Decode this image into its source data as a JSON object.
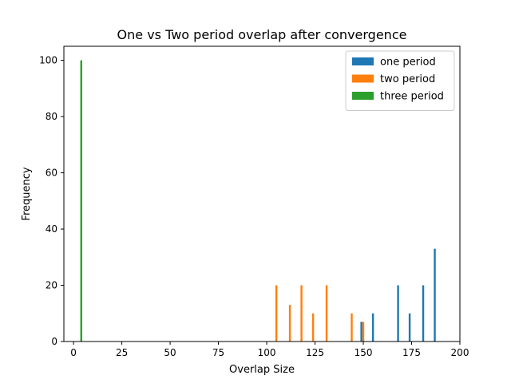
{
  "chart_data": {
    "type": "bar",
    "title": "One vs Two period overlap after convergence",
    "xlabel": "Overlap Size",
    "ylabel": "Frequency",
    "xlim": [
      -5,
      200
    ],
    "ylim": [
      0,
      105
    ],
    "xticks": [
      0,
      25,
      50,
      75,
      100,
      125,
      150,
      175,
      200
    ],
    "yticks": [
      0,
      20,
      40,
      60,
      80,
      100
    ],
    "legend_position": "top-right",
    "grid": false,
    "bar_width": 1,
    "series": [
      {
        "name": "one period",
        "color": "#1f77b4",
        "x": [
          149,
          155,
          168,
          174,
          181,
          187
        ],
        "values": [
          7,
          10,
          20,
          10,
          20,
          33
        ]
      },
      {
        "name": "two period",
        "color": "#ff7f0e",
        "x": [
          105,
          112,
          118,
          124,
          131,
          144,
          150
        ],
        "values": [
          20,
          13,
          20,
          10,
          20,
          10,
          7
        ]
      },
      {
        "name": "three period",
        "color": "#2ca02c",
        "x": [
          4
        ],
        "values": [
          100
        ]
      }
    ]
  }
}
